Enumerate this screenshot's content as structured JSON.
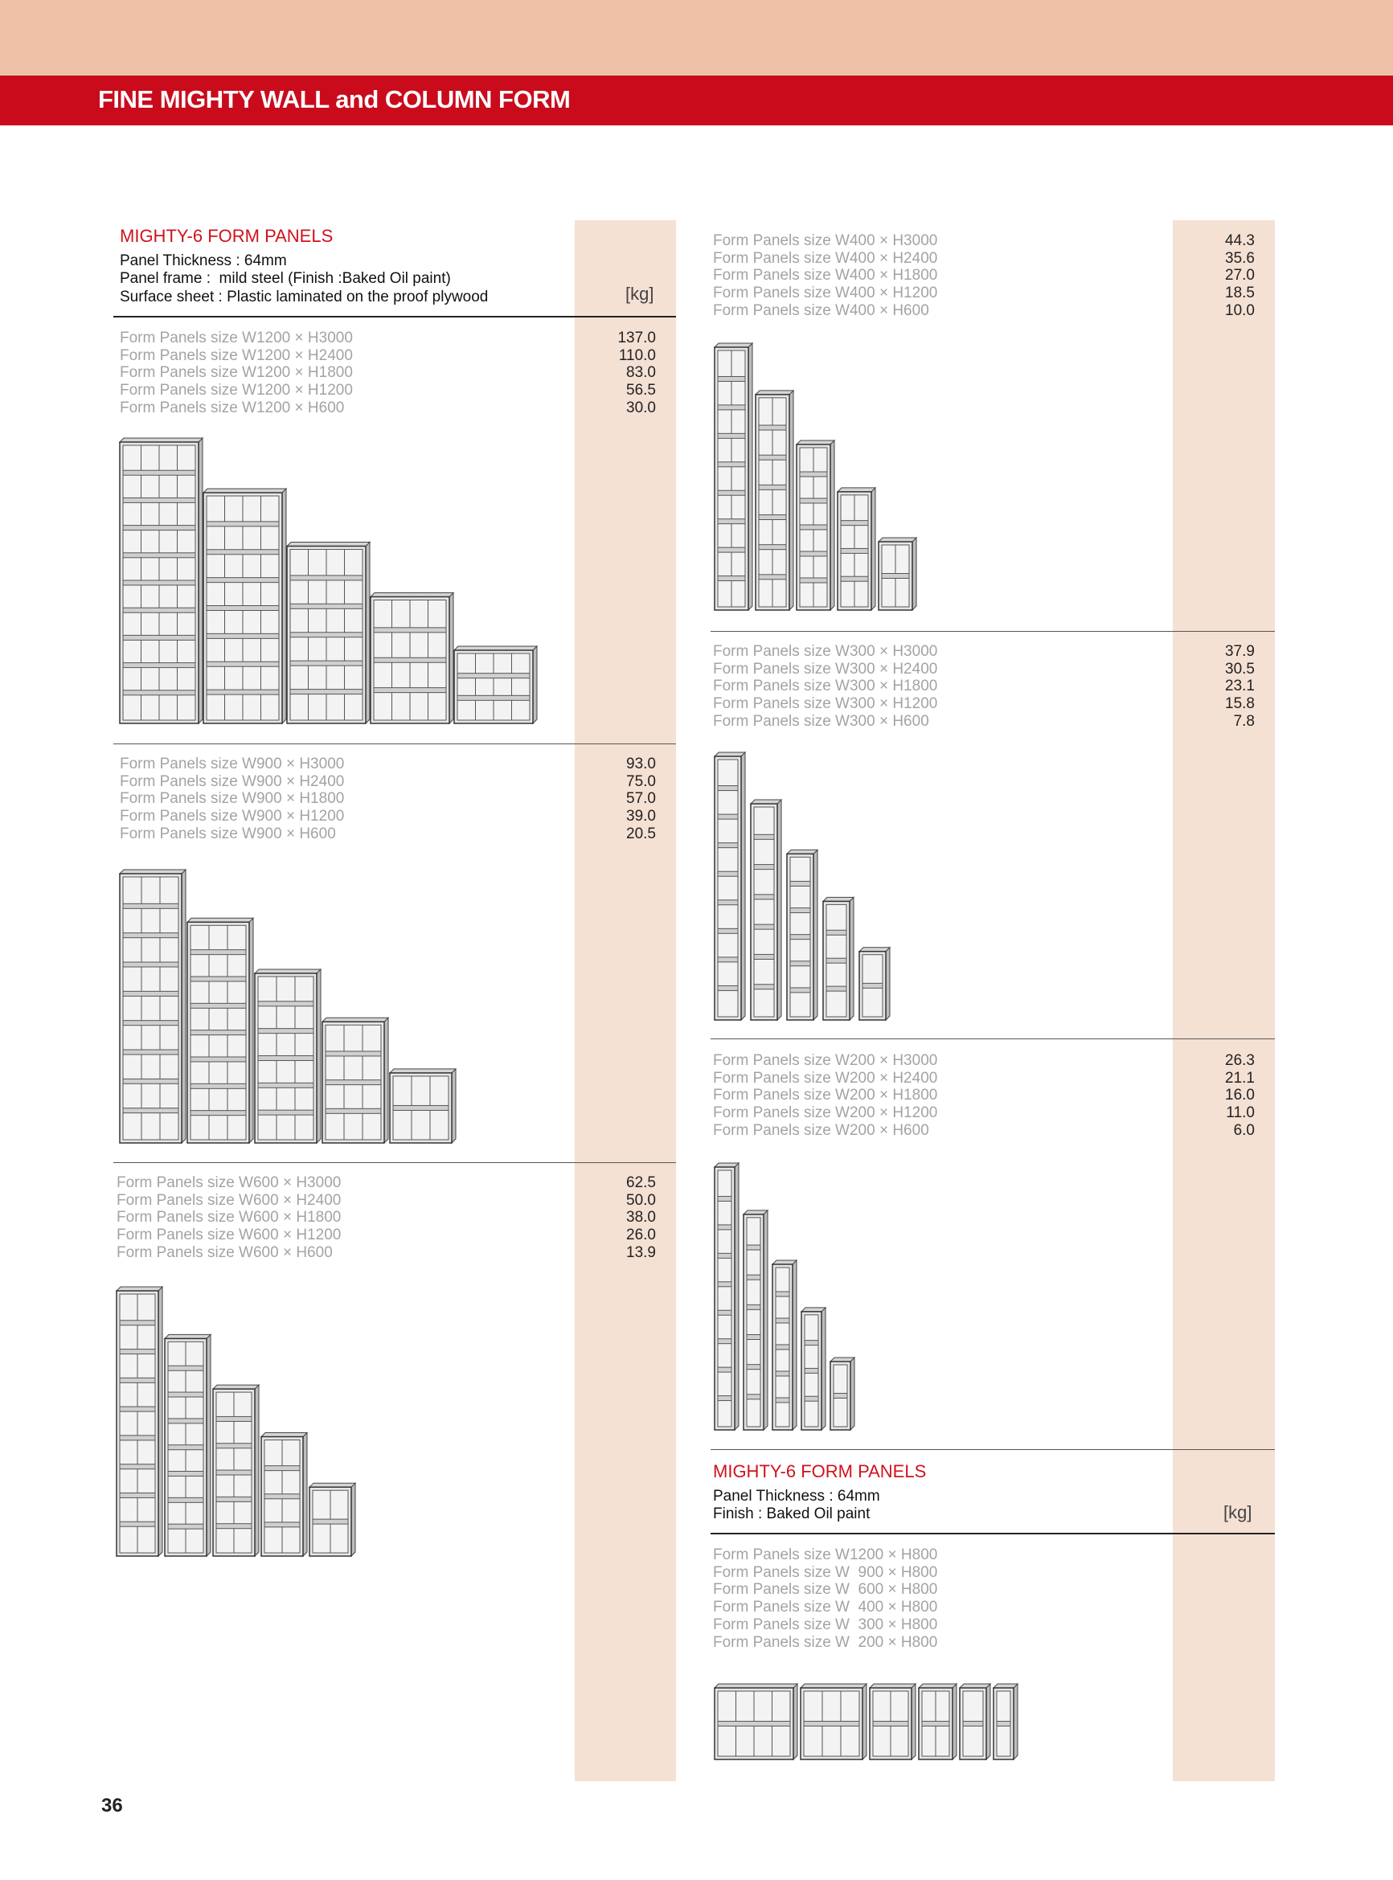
{
  "header": {
    "band_title": "FINE MIGHTY WALL and COLUMN FORM"
  },
  "intro": {
    "title": "MIGHTY-6 FORM PANELS",
    "specs": [
      "Panel Thickness : 64mm",
      "Panel frame :  mild steel (Finish :Baked Oil paint)",
      "Surface sheet : Plastic laminated on the proof plywood"
    ],
    "unit": "[kg]"
  },
  "groups": [
    {
      "items": [
        {
          "name": "Form Panels size W1200 × H3000",
          "weight": "137.0"
        },
        {
          "name": "Form Panels size W1200 × H2400",
          "weight": "110.0"
        },
        {
          "name": "Form Panels size W1200 × H1800",
          "weight": "83.0"
        },
        {
          "name": "Form Panels size W1200 × H1200",
          "weight": "56.5"
        },
        {
          "name": "Form Panels size W1200 × H600",
          "weight": "30.0"
        }
      ]
    },
    {
      "items": [
        {
          "name": "Form Panels size W900 × H3000",
          "weight": "93.0"
        },
        {
          "name": "Form Panels size W900 × H2400",
          "weight": "75.0"
        },
        {
          "name": "Form Panels size W900 × H1800",
          "weight": "57.0"
        },
        {
          "name": "Form Panels size W900 × H1200",
          "weight": "39.0"
        },
        {
          "name": "Form Panels size W900 × H600",
          "weight": "20.5"
        }
      ]
    },
    {
      "items": [
        {
          "name": "Form Panels size W600 × H3000",
          "weight": "62.5"
        },
        {
          "name": "Form Panels size W600 × H2400",
          "weight": "50.0"
        },
        {
          "name": "Form Panels size W600 × H1800",
          "weight": "38.0"
        },
        {
          "name": "Form Panels size W600 × H1200",
          "weight": "26.0"
        },
        {
          "name": "Form Panels size W600 × H600",
          "weight": "13.9"
        }
      ]
    },
    {
      "items": [
        {
          "name": "Form Panels size W400 × H3000",
          "weight": "44.3"
        },
        {
          "name": "Form Panels size W400 × H2400",
          "weight": "35.6"
        },
        {
          "name": "Form Panels size W400 × H1800",
          "weight": "27.0"
        },
        {
          "name": "Form Panels size W400 × H1200",
          "weight": "18.5"
        },
        {
          "name": "Form Panels size W400 × H600",
          "weight": "10.0"
        }
      ]
    },
    {
      "items": [
        {
          "name": "Form Panels size W300 × H3000",
          "weight": "37.9"
        },
        {
          "name": "Form Panels size W300 × H2400",
          "weight": "30.5"
        },
        {
          "name": "Form Panels size W300 × H1800",
          "weight": "23.1"
        },
        {
          "name": "Form Panels size W300 × H1200",
          "weight": "15.8"
        },
        {
          "name": "Form Panels size W300 × H600",
          "weight": "7.8"
        }
      ]
    },
    {
      "items": [
        {
          "name": "Form Panels size W200 × H3000",
          "weight": "26.3"
        },
        {
          "name": "Form Panels size W200 × H2400",
          "weight": "21.1"
        },
        {
          "name": "Form Panels size W200 × H1800",
          "weight": "16.0"
        },
        {
          "name": "Form Panels size W200 × H1200",
          "weight": "11.0"
        },
        {
          "name": "Form Panels size W200 × H600",
          "weight": "6.0"
        }
      ]
    }
  ],
  "h800": {
    "title": "MIGHTY-6 FORM PANELS",
    "specs": [
      "Panel Thickness : 64mm",
      "Finish : Baked Oil paint"
    ],
    "unit": "[kg]",
    "items": [
      "Form Panels size W1200 × H800",
      "Form Panels size W  900 × H800",
      "Form Panels size W  600 × H800",
      "Form Panels size W  400 × H800",
      "Form Panels size W  300 × H800",
      "Form Panels size W  200 × H800"
    ]
  },
  "page_number": "36"
}
